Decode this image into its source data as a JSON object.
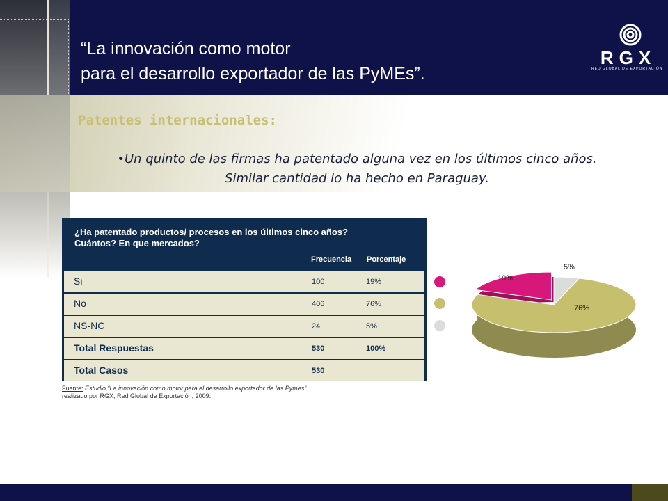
{
  "header": {
    "title_line1": "“La innovación como motor",
    "title_line2": "para el desarrollo exportador de las PyMEs”.",
    "logo_text": "RGX",
    "logo_tagline": "RED GLOBAL DE EXPORTACIÓN"
  },
  "section": {
    "heading": "Patentes internacionales:",
    "bullet_line1": "•Un quinto de las firmas ha patentado alguna vez en los últimos cinco años.",
    "bullet_line2": "Similar cantidad lo ha hecho en Paraguay."
  },
  "table": {
    "question_line1": "¿Ha patentado productos/ procesos en los últimos cinco años?",
    "question_line2": "Cuántos? En que mercados?",
    "col_frecuencia": "Frecuencia",
    "col_porcentaje": "Porcentaje",
    "rows": [
      {
        "label": "Si",
        "frecuencia": "100",
        "porcentaje": "19%"
      },
      {
        "label": "No",
        "frecuencia": "406",
        "porcentaje": "76%"
      },
      {
        "label": "NS-NC",
        "frecuencia": "24",
        "porcentaje": "5%"
      },
      {
        "label": "Total Respuestas",
        "frecuencia": "530",
        "porcentaje": "100%"
      },
      {
        "label": "Total Casos",
        "frecuencia": "530",
        "porcentaje": ""
      }
    ]
  },
  "source": {
    "label": "Fuente:",
    "line1": " Estudio “La innovación como motor para el desarrollo exportador de las Pymes”.",
    "line2": "realizado por RGX, Red Global de Exportación, 2009."
  },
  "colors": {
    "navy": "#0f1248",
    "si": "#d8177a",
    "no": "#c6bf6e",
    "nsnc": "#dcdcdc"
  },
  "chart_data": {
    "type": "pie",
    "categories": [
      "Si",
      "No",
      "NS-NC"
    ],
    "values": [
      19,
      76,
      5
    ],
    "labels": [
      "19%",
      "76%",
      "5%"
    ],
    "colors": [
      "#d8177a",
      "#c6bf6e",
      "#dcdcdc"
    ],
    "title": ""
  }
}
